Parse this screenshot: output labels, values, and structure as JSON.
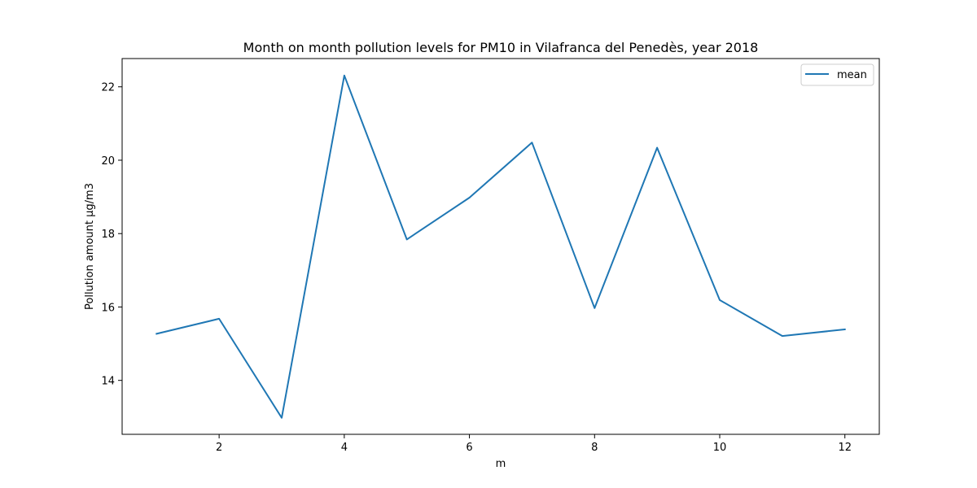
{
  "chart_data": {
    "type": "line",
    "title": "Month on month pollution levels for PM10 in Vilafranca del Penedès, year 2018",
    "xlabel": "m",
    "ylabel": "Pollution amount µg/m3",
    "x": [
      1,
      2,
      3,
      4,
      5,
      6,
      7,
      8,
      9,
      10,
      11,
      12
    ],
    "series": [
      {
        "name": "mean",
        "color": "#1f77b4",
        "values": [
          15.27,
          15.68,
          12.98,
          22.31,
          17.84,
          18.98,
          20.48,
          15.97,
          20.34,
          16.19,
          15.21,
          15.39
        ]
      }
    ],
    "xlim": [
      0.45,
      12.55
    ],
    "ylim": [
      12.53,
      22.77
    ],
    "xticks": [
      2,
      4,
      6,
      8,
      10,
      12
    ],
    "yticks": [
      14,
      16,
      18,
      20,
      22
    ],
    "grid": false,
    "legend_position": "top-right"
  }
}
